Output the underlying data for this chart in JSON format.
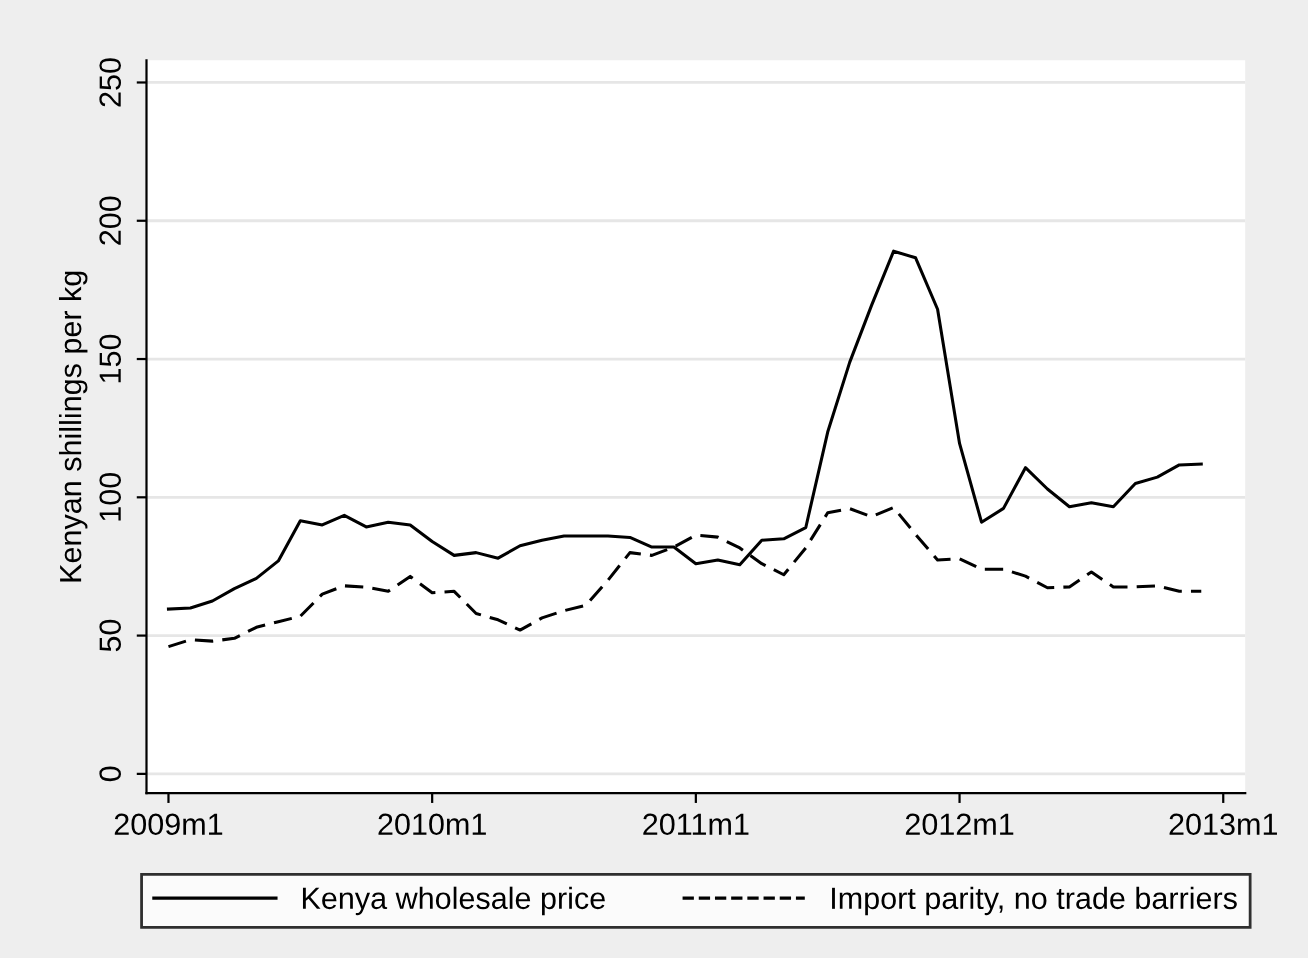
{
  "chart_data": {
    "type": "line",
    "ylabel": "Kenyan shillings per kg",
    "x": [
      "2009-01",
      "2009-02",
      "2009-03",
      "2009-04",
      "2009-05",
      "2009-06",
      "2009-07",
      "2009-08",
      "2009-09",
      "2009-10",
      "2009-11",
      "2009-12",
      "2010-01",
      "2010-02",
      "2010-03",
      "2010-04",
      "2010-05",
      "2010-06",
      "2010-07",
      "2010-08",
      "2010-09",
      "2010-10",
      "2010-11",
      "2010-12",
      "2011-01",
      "2011-02",
      "2011-03",
      "2011-04",
      "2011-05",
      "2011-06",
      "2011-07",
      "2011-08",
      "2011-09",
      "2011-10",
      "2011-11",
      "2011-12",
      "2012-01",
      "2012-02",
      "2012-03",
      "2012-04",
      "2012-05",
      "2012-06",
      "2012-07",
      "2012-08",
      "2012-09",
      "2012-10",
      "2012-11",
      "2012-12"
    ],
    "series": [
      {
        "name": "Kenya wholesale price",
        "color": "#000000",
        "line_style": "solid",
        "values": [
          59.6,
          60,
          62.5,
          67,
          70.7,
          77,
          91.5,
          90,
          93.5,
          89.3,
          91,
          90,
          84,
          79,
          80,
          78,
          82.5,
          84.5,
          86,
          86,
          86,
          85.5,
          82,
          82,
          76,
          77.3,
          75.6,
          84.5,
          85,
          89,
          123.6,
          148.8,
          169.5,
          189,
          186.6,
          168,
          119.5,
          91,
          96,
          110.7,
          103,
          96.6,
          98,
          96.6,
          105,
          107.3,
          111.7,
          112
        ]
      },
      {
        "name": "Import parity, no trade barriers",
        "color": "#000000",
        "line_style": "dashed",
        "values": [
          46,
          48.5,
          48,
          49,
          53,
          55,
          57,
          65,
          68,
          67.5,
          66,
          71.4,
          65.5,
          66,
          58,
          55.7,
          52,
          56.4,
          59,
          61,
          70,
          80,
          79,
          82,
          86.3,
          85.6,
          81.7,
          76,
          72,
          81.7,
          94.4,
          95.9,
          93,
          96.3,
          86.6,
          77.3,
          77.8,
          74,
          74,
          71.5,
          67.3,
          67.6,
          73,
          67.6,
          67.6,
          68,
          66,
          66
        ]
      }
    ],
    "xlim": [
      "2008-12",
      "2013-02"
    ],
    "xticks": [
      {
        "value": "2009-01",
        "label": "2009m1"
      },
      {
        "value": "2010-01",
        "label": "2010m1"
      },
      {
        "value": "2011-01",
        "label": "2011m1"
      },
      {
        "value": "2012-01",
        "label": "2012m1"
      },
      {
        "value": "2013-01",
        "label": "2013m1"
      }
    ],
    "ylim": [
      -7,
      258
    ],
    "yticks": [
      0,
      50,
      100,
      150,
      200,
      250
    ],
    "grid": "y",
    "legend": "bottom"
  }
}
